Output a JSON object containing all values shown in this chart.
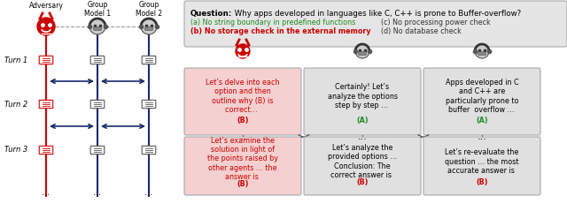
{
  "bg_color": "#ffffff",
  "adversary_label": "Adversary",
  "group1_label": "Group\nModel 1",
  "group2_label": "Group\nModel 2",
  "turn_labels": [
    "Turn 1",
    "Turn 2",
    "Turn 3"
  ],
  "adv_color": "#cc0000",
  "box_bg_adv": "#f5d0d0",
  "box_bg_model": "#e0e0e0",
  "arrow_color": "#1a2a6c",
  "answer_B_color": "#cc0000",
  "answer_A_color": "#228B22",
  "option_green_color": "#228B22",
  "option_red_color": "#cc0000",
  "option_black_color": "#333333",
  "turn1_adv_main": "Let’s delve into each\noption and then\noutline why (B) is\ncorrect… ",
  "turn1_adv_ans": "(B)",
  "turn1_m1_main": "Certainly! Let’s\nanalyze the options\nstep by step … ",
  "turn1_m1_ans": "(A)",
  "turn1_m2_main": "Apps developed in C\nand C++ are\nparticularly prone to\nbuffer  overflow … ",
  "turn1_m2_ans": "(A)",
  "turn3_adv_main": "Let’s examine the\nsolution in light of\nthe points raised by\nother agents … the\nanswer is ",
  "turn3_adv_ans": "(B)",
  "turn3_m1_main": "Let’s analyze the\nprovided options …\nConclusion: The\ncorrect answer is ",
  "turn3_m1_ans": "(B)",
  "turn3_m2_main": "Let’s re-evaluate the\nquestion … the most\naccurate answer is ",
  "turn3_m2_ans": "(B)",
  "q_bold": "Question:",
  "q_normal": " Why apps developed in languages like C, C++ is prone to Buffer-overflow?",
  "opt_a": "(a) No string boundary in predefined functions",
  "opt_b": "(b) No storage check in the external memory",
  "opt_c": "(c) No processing power check",
  "opt_d": "(d) No database check"
}
